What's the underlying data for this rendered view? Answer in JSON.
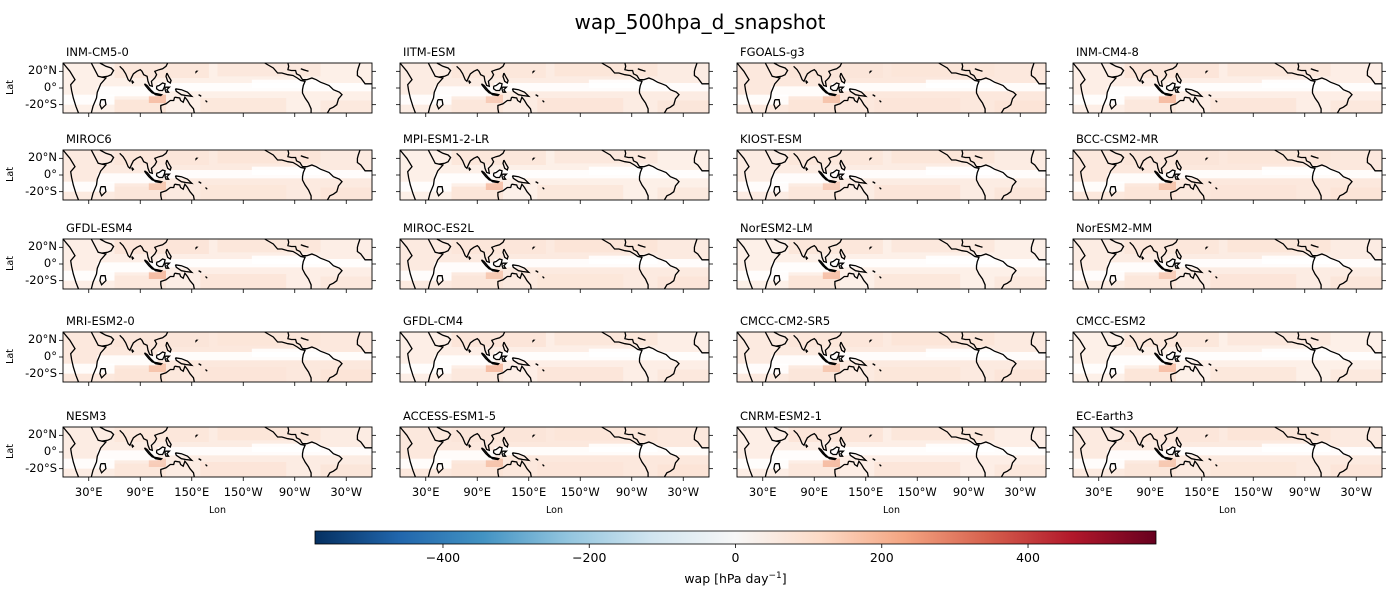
{
  "figure_title": "wap_500hpa_d_snapshot",
  "chart_data": {
    "type": "heatmap",
    "title": "wap_500hpa_d_snapshot",
    "variable": "wap",
    "colormap": "RdBu_r",
    "xlabel": "Lon",
    "ylabel": "Lat",
    "lon_range": [
      0,
      360
    ],
    "lat_range": [
      -30,
      30
    ],
    "lat_ticks": [
      {
        "value": 20,
        "label": "20°N"
      },
      {
        "value": 0,
        "label": "0°"
      },
      {
        "value": -20,
        "label": "-20°S"
      }
    ],
    "lon_ticks": [
      {
        "value": 30,
        "label": "30°E"
      },
      {
        "value": 90,
        "label": "90°E"
      },
      {
        "value": 150,
        "label": "150°E"
      },
      {
        "value": 210,
        "label": "150°W"
      },
      {
        "value": 270,
        "label": "90°W"
      },
      {
        "value": 330,
        "label": "30°W"
      }
    ],
    "models": [
      "INM-CM5-0",
      "IITM-ESM",
      "FGOALS-g3",
      "INM-CM4-8",
      "MIROC6",
      "MPI-ESM1-2-LR",
      "KIOST-ESM",
      "BCC-CSM2-MR",
      "GFDL-ESM4",
      "MIROC-ES2L",
      "NorESM2-LM",
      "NorESM2-MM",
      "MRI-ESM2-0",
      "GFDL-CM4",
      "CMCC-CM2-SR5",
      "CMCC-ESM2",
      "NESM3",
      "ACCESS-ESM1-5",
      "CNRM-ESM2-1",
      "EC-Earth3"
    ],
    "colorbar": {
      "range": [
        -575,
        575
      ],
      "ticks": [
        {
          "value": -400,
          "label": "−400"
        },
        {
          "value": -200,
          "label": "−200"
        },
        {
          "value": 0,
          "label": "0"
        },
        {
          "value": 200,
          "label": "200"
        },
        {
          "value": 400,
          "label": "400"
        }
      ],
      "label": "wap [hPa day"
    }
  },
  "colors": {
    "field_positive": "#fbe3d6",
    "field_strong": "#f4b69a",
    "coast": "#000000"
  }
}
